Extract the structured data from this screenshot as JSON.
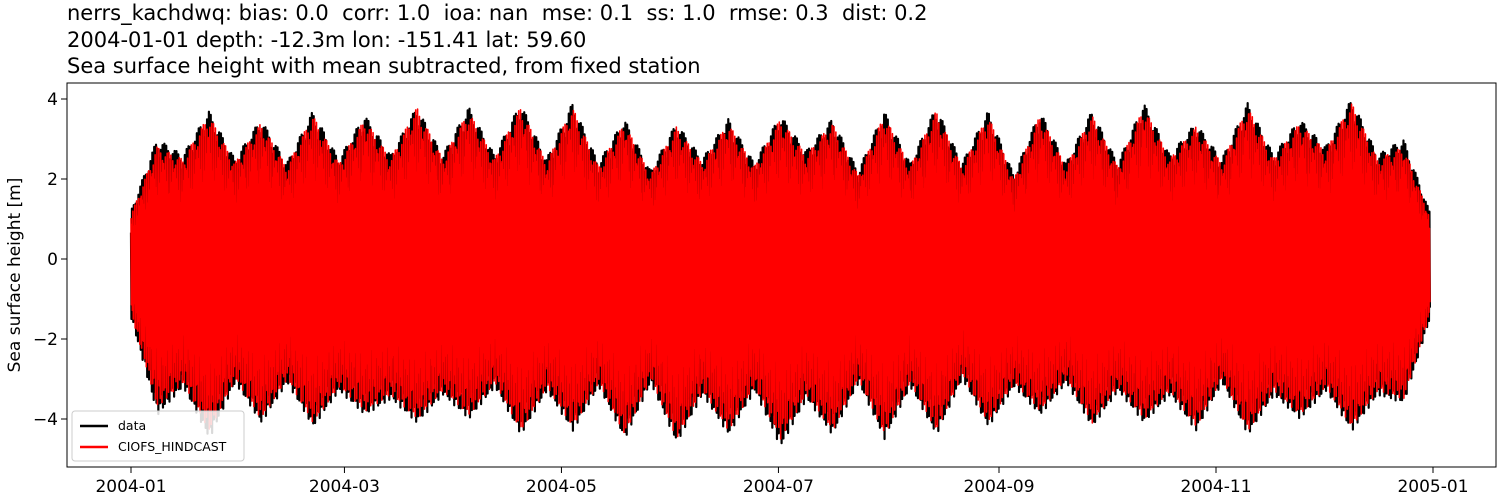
{
  "chart_data": {
    "type": "line",
    "title_lines": [
      "nerrs_kachdwq: bias: 0.0  corr: 1.0  ioa: nan  mse: 0.1  ss: 1.0  rmse: 0.3  dist: 0.2",
      "2004-01-01 depth: -12.3m lon: -151.41 lat: 59.60",
      "Sea surface height with mean subtracted, from fixed station"
    ],
    "xlabel": "",
    "ylabel": "Sea surface height [m]",
    "x_range": [
      "2004-01-01",
      "2005-01-01"
    ],
    "ylim": [
      -5.2,
      4.4
    ],
    "x_ticks": [
      "2004-01",
      "2004-03",
      "2004-05",
      "2004-07",
      "2004-09",
      "2004-11",
      "2005-01"
    ],
    "y_ticks": [
      {
        "value": 4,
        "label": "4"
      },
      {
        "value": 2,
        "label": "2"
      },
      {
        "value": 0,
        "label": "0"
      },
      {
        "value": -2,
        "label": "−2"
      },
      {
        "value": -4,
        "label": "−4"
      }
    ],
    "grid": false,
    "legend_position": "lower-left",
    "series": [
      {
        "name": "data",
        "color": "#000000",
        "envelope": {
          "dates": [
            "2004-01-01",
            "2004-01-08",
            "2004-01-15",
            "2004-01-22",
            "2004-01-29",
            "2004-02-05",
            "2004-02-12",
            "2004-02-20",
            "2004-02-27",
            "2004-03-05",
            "2004-03-12",
            "2004-03-20",
            "2004-03-27",
            "2004-04-03",
            "2004-04-10",
            "2004-04-18",
            "2004-04-25",
            "2004-05-02",
            "2004-05-09",
            "2004-05-17",
            "2004-05-24",
            "2004-06-01",
            "2004-06-08",
            "2004-06-16",
            "2004-06-23",
            "2004-07-01",
            "2004-07-08",
            "2004-07-15",
            "2004-07-22",
            "2004-07-30",
            "2004-08-06",
            "2004-08-13",
            "2004-08-20",
            "2004-08-28",
            "2004-09-04",
            "2004-09-11",
            "2004-09-19",
            "2004-09-26",
            "2004-10-03",
            "2004-10-11",
            "2004-10-18",
            "2004-10-26",
            "2004-11-02",
            "2004-11-09",
            "2004-11-17",
            "2004-11-24",
            "2004-12-01",
            "2004-12-08",
            "2004-12-15",
            "2004-12-23",
            "2004-12-31"
          ],
          "max": [
            1.2,
            3.0,
            2.6,
            3.7,
            2.5,
            3.5,
            2.4,
            3.7,
            2.5,
            3.6,
            2.6,
            3.8,
            2.6,
            3.8,
            2.6,
            3.9,
            2.5,
            3.9,
            2.4,
            3.5,
            2.2,
            3.4,
            2.5,
            3.5,
            2.4,
            3.6,
            2.7,
            3.5,
            2.2,
            3.7,
            2.4,
            3.8,
            2.4,
            3.7,
            2.1,
            3.7,
            2.4,
            3.7,
            2.4,
            3.9,
            2.6,
            3.4,
            2.5,
            3.9,
            2.6,
            3.5,
            2.8,
            4.0,
            2.6,
            3.0,
            1.2
          ],
          "min": [
            -1.5,
            -3.9,
            -3.2,
            -4.5,
            -3.1,
            -4.1,
            -3.1,
            -4.2,
            -3.3,
            -3.9,
            -3.5,
            -4.1,
            -3.4,
            -4.0,
            -3.2,
            -4.4,
            -3.3,
            -4.3,
            -3.2,
            -4.5,
            -3.1,
            -4.6,
            -3.4,
            -4.4,
            -3.3,
            -4.7,
            -3.5,
            -4.4,
            -3.1,
            -4.5,
            -3.2,
            -4.4,
            -3.0,
            -4.2,
            -3.2,
            -3.9,
            -3.1,
            -4.2,
            -3.3,
            -4.1,
            -3.4,
            -4.3,
            -3.1,
            -4.4,
            -3.4,
            -4.0,
            -3.3,
            -4.3,
            -3.4,
            -3.6,
            -1.5
          ]
        }
      },
      {
        "name": "CIOFS_HINDCAST",
        "color": "#ff0000",
        "envelope": {
          "dates": [
            "2004-01-01",
            "2004-01-08",
            "2004-01-15",
            "2004-01-22",
            "2004-01-29",
            "2004-02-05",
            "2004-02-12",
            "2004-02-20",
            "2004-02-27",
            "2004-03-05",
            "2004-03-12",
            "2004-03-20",
            "2004-03-27",
            "2004-04-03",
            "2004-04-10",
            "2004-04-18",
            "2004-04-25",
            "2004-05-02",
            "2004-05-09",
            "2004-05-17",
            "2004-05-24",
            "2004-06-01",
            "2004-06-08",
            "2004-06-16",
            "2004-06-23",
            "2004-07-01",
            "2004-07-08",
            "2004-07-15",
            "2004-07-22",
            "2004-07-30",
            "2004-08-06",
            "2004-08-13",
            "2004-08-20",
            "2004-08-28",
            "2004-09-04",
            "2004-09-11",
            "2004-09-19",
            "2004-09-26",
            "2004-10-03",
            "2004-10-11",
            "2004-10-18",
            "2004-10-26",
            "2004-11-02",
            "2004-11-09",
            "2004-11-17",
            "2004-11-24",
            "2004-12-01",
            "2004-12-08",
            "2004-12-15",
            "2004-12-23",
            "2004-12-31"
          ],
          "max": [
            1.1,
            2.8,
            2.5,
            3.6,
            2.4,
            3.4,
            2.3,
            3.6,
            2.4,
            3.5,
            2.5,
            3.8,
            2.5,
            3.7,
            2.5,
            3.8,
            2.4,
            3.8,
            2.3,
            3.4,
            2.1,
            3.3,
            2.4,
            3.4,
            2.3,
            3.5,
            2.6,
            3.4,
            2.1,
            3.6,
            2.3,
            3.7,
            2.3,
            3.6,
            2.0,
            3.6,
            2.3,
            3.6,
            2.3,
            3.8,
            2.5,
            3.3,
            2.4,
            3.8,
            2.5,
            3.4,
            2.7,
            3.9,
            2.5,
            2.8,
            1.1
          ],
          "min": [
            -1.4,
            -3.7,
            -3.1,
            -4.3,
            -3.0,
            -4.0,
            -3.0,
            -4.1,
            -3.2,
            -3.8,
            -3.4,
            -4.0,
            -3.3,
            -3.9,
            -3.1,
            -4.3,
            -3.2,
            -4.2,
            -3.1,
            -4.4,
            -3.0,
            -4.5,
            -3.3,
            -4.3,
            -3.2,
            -4.5,
            -3.4,
            -4.3,
            -3.0,
            -4.4,
            -3.1,
            -4.3,
            -2.9,
            -4.1,
            -3.1,
            -3.8,
            -3.0,
            -4.1,
            -3.2,
            -4.0,
            -3.3,
            -4.2,
            -3.0,
            -4.3,
            -3.3,
            -3.9,
            -3.2,
            -4.2,
            -3.3,
            -3.5,
            -1.4
          ]
        }
      }
    ],
    "legend": [
      {
        "label": "data",
        "color": "#000000"
      },
      {
        "label": "CIOFS_HINDCAST",
        "color": "#ff0000"
      }
    ]
  }
}
